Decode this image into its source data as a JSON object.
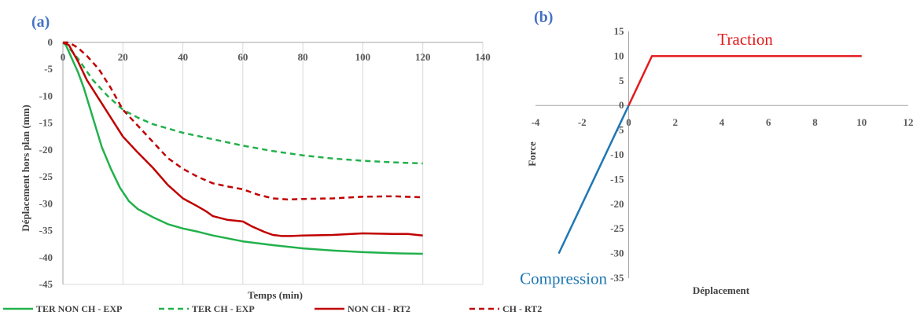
{
  "chart_data": [
    {
      "type": "line",
      "panel_label": "(a)",
      "xlabel": "Temps (min)",
      "ylabel": "Déplacement hors plan (mm)",
      "xlim": [
        0,
        140
      ],
      "ylim": [
        -45,
        0
      ],
      "x_ticks": [
        "0",
        "20",
        "40",
        "60",
        "80",
        "100",
        "120",
        "140"
      ],
      "y_ticks": [
        "0",
        "-5",
        "-10",
        "-15",
        "-20",
        "-25",
        "-30",
        "-35",
        "-40",
        "-45"
      ],
      "grid": "vertical",
      "legend_position": "bottom",
      "series": [
        {
          "name": "TER NON CH - EXP",
          "color": "#22B14C",
          "dash": "solid",
          "x": [
            0,
            1,
            3,
            5,
            7,
            10,
            13,
            16,
            19,
            22,
            25,
            30,
            35,
            40,
            45,
            50,
            60,
            70,
            80,
            90,
            100,
            110,
            120
          ],
          "y": [
            0,
            -0.5,
            -3,
            -5.5,
            -8.5,
            -14,
            -19.5,
            -23.5,
            -27,
            -29.5,
            -31,
            -32.5,
            -33.8,
            -34.6,
            -35.2,
            -35.9,
            -37,
            -37.7,
            -38.3,
            -38.7,
            -39,
            -39.2,
            -39.3
          ]
        },
        {
          "name": "TER CH - EXP",
          "color": "#22B14C",
          "dash": "dashed",
          "x": [
            0,
            2,
            5,
            10,
            15,
            20,
            25,
            30,
            40,
            50,
            60,
            70,
            80,
            90,
            100,
            110,
            120
          ],
          "y": [
            0,
            -1,
            -3,
            -7,
            -10,
            -12.5,
            -14,
            -15.2,
            -16.8,
            -18,
            -19.2,
            -20.2,
            -21,
            -21.6,
            -22,
            -22.3,
            -22.5
          ]
        },
        {
          "name": "NON CH - RT2",
          "color": "#C00000",
          "dash": "solid",
          "x": [
            0,
            2,
            5,
            8,
            12,
            16,
            20,
            25,
            30,
            35,
            40,
            45,
            48,
            50,
            55,
            60,
            63,
            67,
            70,
            73,
            76,
            80,
            90,
            100,
            110,
            115,
            120
          ],
          "y": [
            0,
            -0.5,
            -3.5,
            -7,
            -10.5,
            -14,
            -17.5,
            -20.5,
            -23.3,
            -26.5,
            -29,
            -30.5,
            -31.5,
            -32.3,
            -33,
            -33.3,
            -34.2,
            -35.2,
            -35.8,
            -36,
            -36,
            -35.9,
            -35.8,
            -35.5,
            -35.6,
            -35.6,
            -35.9
          ]
        },
        {
          "name": "CH - RT2",
          "color": "#C00000",
          "dash": "dashed",
          "x": [
            0,
            2,
            5,
            8,
            12,
            16,
            20,
            25,
            30,
            35,
            40,
            45,
            50,
            55,
            60,
            65,
            70,
            75,
            80,
            90,
            100,
            110,
            120
          ],
          "y": [
            0,
            0,
            -1,
            -2.5,
            -5,
            -8.5,
            -12.5,
            -15.5,
            -18.5,
            -21.5,
            -23.5,
            -25,
            -26.2,
            -26.8,
            -27.3,
            -28.3,
            -29,
            -29.2,
            -29.1,
            -29,
            -28.7,
            -28.6,
            -28.8
          ]
        }
      ]
    },
    {
      "type": "line",
      "panel_label": "(b)",
      "xlabel": "Déplacement",
      "ylabel": "Force",
      "xlim": [
        -4,
        12
      ],
      "ylim": [
        -35,
        15
      ],
      "x_ticks": [
        "-4",
        "-2",
        "0",
        "2",
        "4",
        "6",
        "8",
        "10",
        "12"
      ],
      "y_ticks": [
        "15",
        "10",
        "5",
        "0",
        "-5",
        "-10",
        "-15",
        "-20",
        "-25",
        "-30",
        "-35"
      ],
      "grid": "off",
      "series": [
        {
          "color": "#1F77B4",
          "x": [
            -3,
            0
          ],
          "y": [
            -30,
            0
          ]
        },
        {
          "color": "#E31A1C",
          "x": [
            0,
            1,
            10
          ],
          "y": [
            0,
            10,
            10
          ]
        }
      ],
      "annotations": [
        {
          "text": "Traction",
          "color": "#E31A1C",
          "x": 5,
          "y": 12.3
        },
        {
          "text": "Compression",
          "color": "#1F77B4",
          "x": -2.8,
          "y": -36.2
        }
      ]
    }
  ]
}
